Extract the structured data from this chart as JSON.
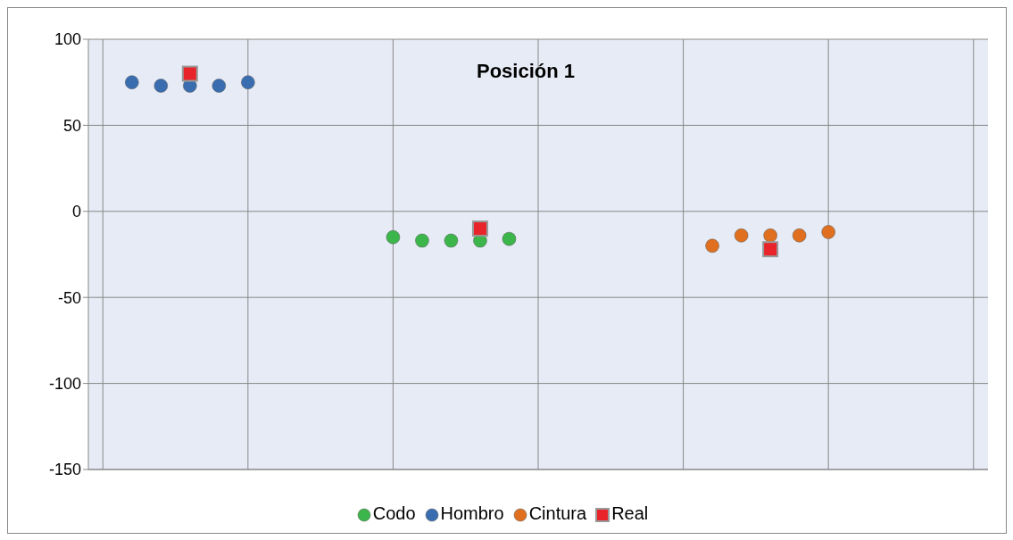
{
  "chart_data": {
    "type": "scatter",
    "title": "Posición 1",
    "categories": [
      null,
      null,
      null,
      null,
      null,
      null,
      null,
      null,
      null,
      null,
      null,
      null,
      null,
      null,
      null,
      null,
      null,
      null,
      null,
      null,
      null,
      null,
      null,
      null,
      null,
      null,
      null,
      null,
      null,
      null,
      null
    ],
    "ylim": [
      -150,
      100
    ],
    "yticks": [
      -150,
      -100,
      -50,
      0,
      50,
      100
    ],
    "grid": true,
    "legend": "bottom",
    "marker": "circle",
    "series": [
      {
        "name": "Codo",
        "color": "#3cb64a",
        "values": [
          null,
          null,
          null,
          null,
          null,
          null,
          null,
          null,
          null,
          null,
          -15,
          -17,
          -17,
          -17,
          -16,
          null,
          null,
          null,
          null,
          null,
          null,
          null,
          null,
          null,
          null,
          null,
          null,
          null,
          null,
          null,
          null
        ]
      },
      {
        "name": "Hombro",
        "color": "#3a6db0",
        "values": [
          null,
          75,
          73,
          73,
          73,
          75,
          null,
          null,
          null,
          null,
          null,
          null,
          null,
          null,
          null,
          null,
          null,
          null,
          null,
          null,
          null,
          null,
          null,
          null,
          null,
          null,
          null,
          null,
          null,
          null,
          null
        ]
      },
      {
        "name": "Cintura",
        "color": "#e07020",
        "values": [
          null,
          null,
          null,
          null,
          null,
          null,
          null,
          null,
          null,
          null,
          null,
          null,
          null,
          null,
          null,
          null,
          null,
          null,
          null,
          null,
          null,
          -20,
          -14,
          -14,
          -14,
          -12,
          null,
          null,
          null,
          null,
          null
        ]
      },
      {
        "name": "Real",
        "color": "#e8242a",
        "marker": "square",
        "values": [
          null,
          null,
          null,
          80,
          null,
          null,
          null,
          null,
          null,
          null,
          null,
          null,
          null,
          -10,
          null,
          null,
          null,
          null,
          null,
          null,
          null,
          null,
          null,
          -22,
          null,
          null,
          null,
          null,
          null,
          null,
          null
        ]
      }
    ]
  }
}
